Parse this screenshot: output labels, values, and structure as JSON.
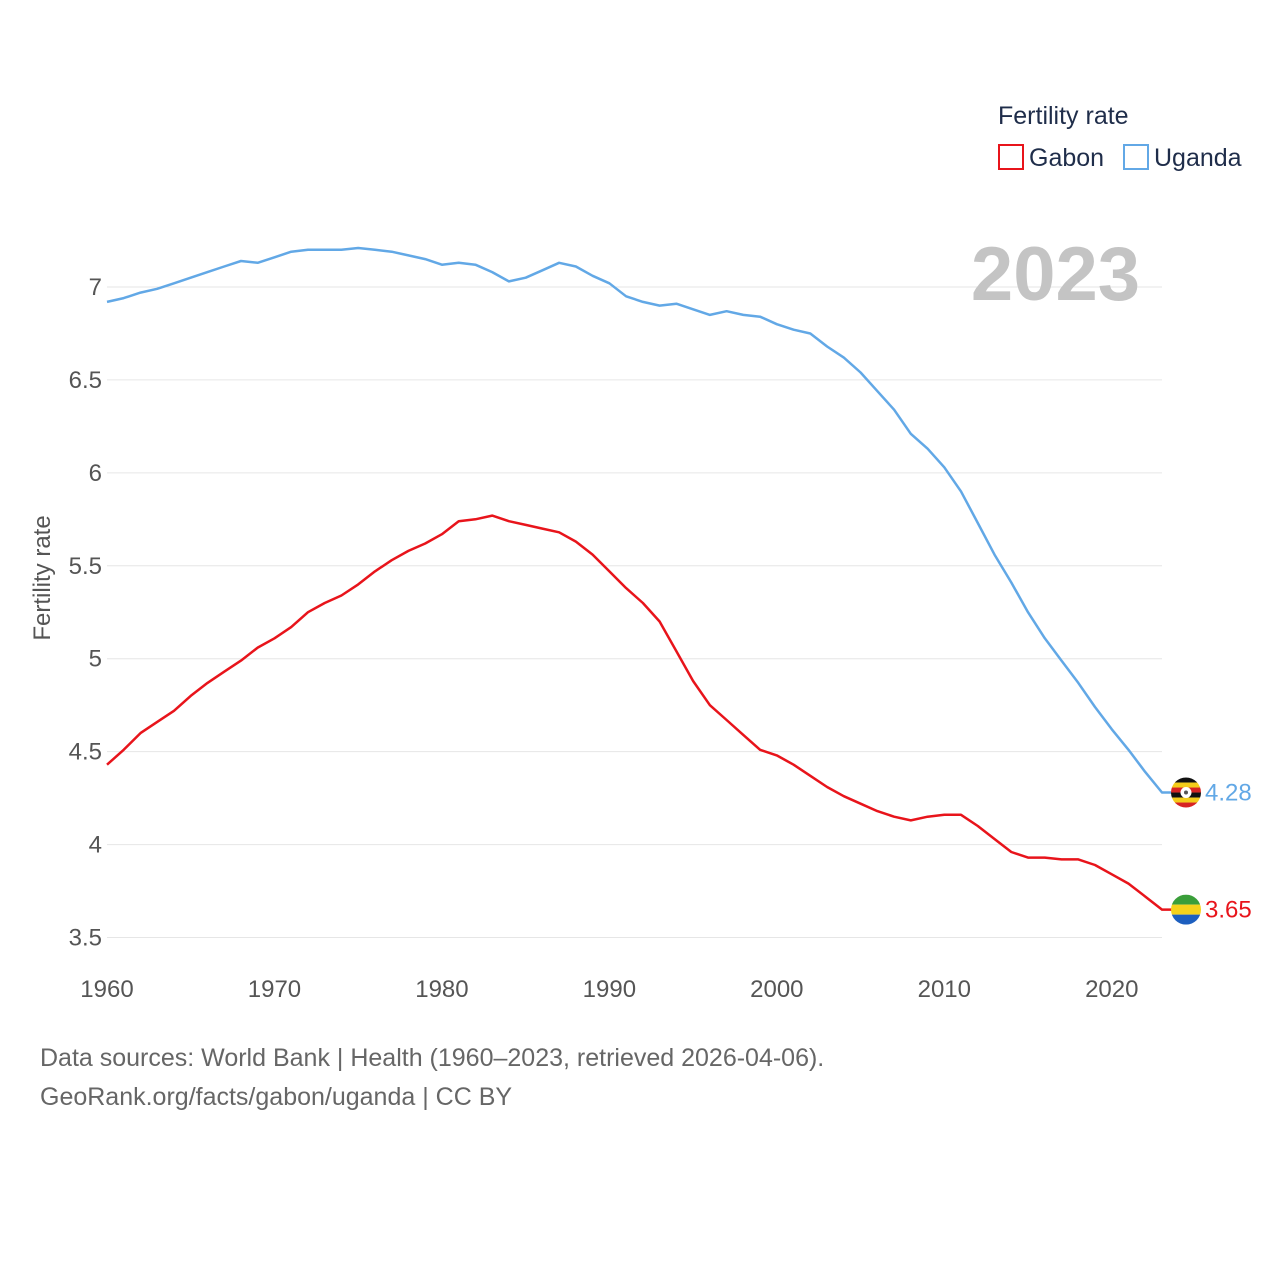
{
  "legend": {
    "title": "Fertility rate",
    "items": [
      {
        "name": "Gabon",
        "color": "#e8141b"
      },
      {
        "name": "Uganda",
        "color": "#62a8e6"
      }
    ]
  },
  "year_label": "2023",
  "footer": {
    "line1": "Data sources: World Bank | Health (1960–2023, retrieved 2026-04-06).",
    "line2": "GeoRank.org/facts/gabon/uganda | CC BY"
  },
  "chart_data": {
    "type": "line",
    "title": "Fertility rate",
    "xlabel": "",
    "ylabel": "Fertility rate",
    "xlim": [
      1960,
      2023
    ],
    "ylim": [
      3.5,
      7.3
    ],
    "x_ticks": [
      1960,
      1970,
      1980,
      1990,
      2000,
      2010,
      2020
    ],
    "y_ticks": [
      3.5,
      4,
      4.5,
      5,
      5.5,
      6,
      6.5,
      7
    ],
    "y_tick_labels": [
      "3.5",
      "4",
      "4.5",
      "5",
      "5.5",
      "6",
      "6.5",
      "7"
    ],
    "x_tick_labels": [
      "1960",
      "1970",
      "1980",
      "1990",
      "2000",
      "2010",
      "2020"
    ],
    "grid": true,
    "legend_position": "top-right",
    "x": [
      1960,
      1961,
      1962,
      1963,
      1964,
      1965,
      1966,
      1967,
      1968,
      1969,
      1970,
      1971,
      1972,
      1973,
      1974,
      1975,
      1976,
      1977,
      1978,
      1979,
      1980,
      1981,
      1982,
      1983,
      1984,
      1985,
      1986,
      1987,
      1988,
      1989,
      1990,
      1991,
      1992,
      1993,
      1994,
      1995,
      1996,
      1997,
      1998,
      1999,
      2000,
      2001,
      2002,
      2003,
      2004,
      2005,
      2006,
      2007,
      2008,
      2009,
      2010,
      2011,
      2012,
      2013,
      2014,
      2015,
      2016,
      2017,
      2018,
      2019,
      2020,
      2021,
      2022,
      2023
    ],
    "series": [
      {
        "name": "Gabon",
        "color": "#e8141b",
        "end_label": "3.65",
        "values": [
          4.43,
          4.51,
          4.6,
          4.66,
          4.72,
          4.8,
          4.87,
          4.93,
          4.99,
          5.06,
          5.11,
          5.17,
          5.25,
          5.3,
          5.34,
          5.4,
          5.47,
          5.53,
          5.58,
          5.62,
          5.67,
          5.74,
          5.75,
          5.77,
          5.74,
          5.72,
          5.7,
          5.68,
          5.63,
          5.56,
          5.47,
          5.38,
          5.3,
          5.2,
          5.04,
          4.88,
          4.75,
          4.67,
          4.59,
          4.51,
          4.48,
          4.43,
          4.37,
          4.31,
          4.26,
          4.22,
          4.18,
          4.15,
          4.13,
          4.15,
          4.16,
          4.16,
          4.1,
          4.03,
          3.96,
          3.93,
          3.93,
          3.92,
          3.92,
          3.89,
          3.84,
          3.79,
          3.72,
          3.65
        ]
      },
      {
        "name": "Uganda",
        "color": "#62a8e6",
        "end_label": "4.28",
        "values": [
          6.92,
          6.94,
          6.97,
          6.99,
          7.02,
          7.05,
          7.08,
          7.11,
          7.14,
          7.13,
          7.16,
          7.19,
          7.2,
          7.2,
          7.2,
          7.21,
          7.2,
          7.19,
          7.17,
          7.15,
          7.12,
          7.13,
          7.12,
          7.08,
          7.03,
          7.05,
          7.09,
          7.13,
          7.11,
          7.06,
          7.02,
          6.95,
          6.92,
          6.9,
          6.91,
          6.88,
          6.85,
          6.87,
          6.85,
          6.84,
          6.8,
          6.77,
          6.75,
          6.68,
          6.62,
          6.54,
          6.44,
          6.34,
          6.21,
          6.13,
          6.03,
          5.9,
          5.73,
          5.56,
          5.41,
          5.25,
          5.11,
          4.99,
          4.87,
          4.74,
          4.62,
          4.51,
          4.39,
          4.28
        ]
      }
    ]
  }
}
